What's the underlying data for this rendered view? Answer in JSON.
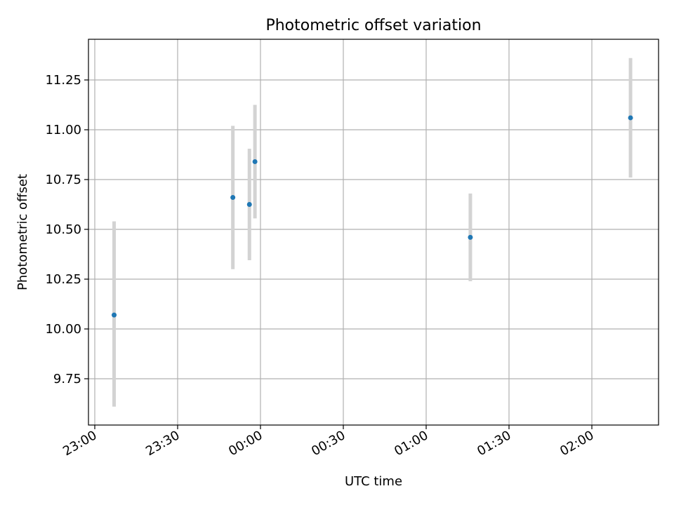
{
  "chart_data": {
    "type": "scatter",
    "title": "Photometric offset variation",
    "xlabel": "UTC time",
    "ylabel": "Photometric offset",
    "x_ticks": [
      "23:00",
      "23:30",
      "00:00",
      "00:30",
      "01:00",
      "01:30",
      "02:00"
    ],
    "y_ticks": [
      "9.75",
      "10.00",
      "10.25",
      "10.50",
      "10.75",
      "11.00",
      "11.25"
    ],
    "grid": true,
    "point_color": "#1f77b4",
    "errorbar_color": "#d3d3d3",
    "series": [
      {
        "x": [
          "23:07",
          "23:50",
          "23:56",
          "23:58",
          "01:16",
          "02:14"
        ],
        "y": [
          10.07,
          10.66,
          10.625,
          10.84,
          10.46,
          11.06
        ],
        "yerr_low": [
          9.61,
          10.3,
          10.345,
          10.555,
          10.24,
          10.76
        ],
        "yerr_high": [
          10.54,
          11.02,
          10.905,
          11.125,
          10.68,
          11.36
        ]
      }
    ]
  }
}
